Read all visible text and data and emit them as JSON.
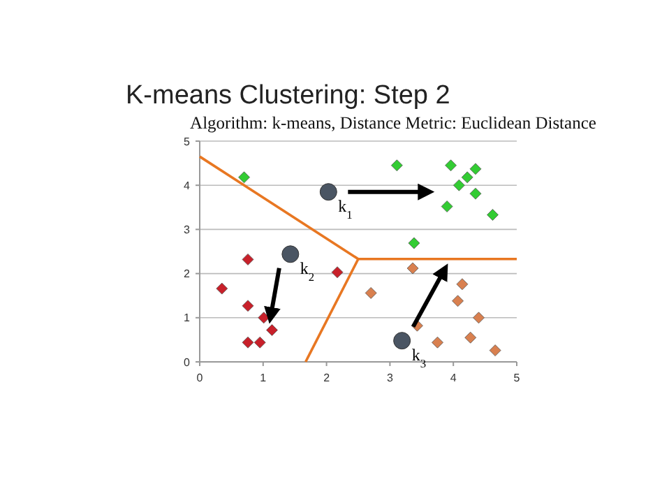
{
  "chart_data": {
    "type": "scatter",
    "title": "K-means Clustering: Step 2",
    "subtitle": "Algorithm: k-means, Distance Metric: Euclidean Distance",
    "xlim": [
      0,
      5
    ],
    "ylim": [
      0,
      5
    ],
    "xticks": [
      0,
      1,
      2,
      3,
      4,
      5
    ],
    "yticks": [
      0,
      1,
      2,
      3,
      4,
      5
    ],
    "grid": "y",
    "series": [
      {
        "type": "line",
        "color": "#e87722",
        "x": [
          0,
          2.5,
          5
        ],
        "values": [
          4.65,
          2.33,
          2.33
        ],
        "marker": "none"
      },
      {
        "type": "line",
        "color": "#e87722",
        "x": [
          1.67,
          2.5
        ],
        "values": [
          0,
          2.33
        ],
        "marker": "none"
      },
      {
        "color": "#33cc33",
        "marker": "diamond",
        "x": [
          0.7,
          3.11,
          3.96,
          4.35,
          4.22,
          4.09,
          4.35,
          3.9,
          4.62,
          3.38
        ],
        "values": [
          4.18,
          4.45,
          4.45,
          4.37,
          4.18,
          4.0,
          3.81,
          3.52,
          3.33,
          2.69
        ]
      },
      {
        "color": "#c8202a",
        "marker": "diamond",
        "x": [
          0.76,
          0.35,
          0.76,
          1.01,
          1.14,
          0.76,
          0.95,
          2.17
        ],
        "values": [
          2.32,
          1.66,
          1.27,
          1.0,
          0.72,
          0.44,
          0.44,
          2.03
        ]
      },
      {
        "color": "#d9804f",
        "marker": "diamond",
        "x": [
          3.36,
          2.7,
          4.14,
          4.07,
          4.4,
          3.43,
          3.75,
          4.27,
          4.66
        ],
        "values": [
          2.12,
          1.56,
          1.76,
          1.38,
          1.0,
          0.82,
          0.44,
          0.55,
          0.26
        ]
      },
      {
        "color": "#4a5563",
        "marker": "circle",
        "x": [
          2.03,
          1.43,
          3.19
        ],
        "values": [
          3.85,
          2.44,
          0.48
        ]
      }
    ],
    "annotations": [
      {
        "text": "k$_{1}$",
        "x": 2.03,
        "y": 3.85
      },
      {
        "text": "k$_{2}$",
        "x": 1.43,
        "y": 2.44
      },
      {
        "text": "k$_{3}$",
        "x": 3.19,
        "y": 0.48
      }
    ]
  }
}
